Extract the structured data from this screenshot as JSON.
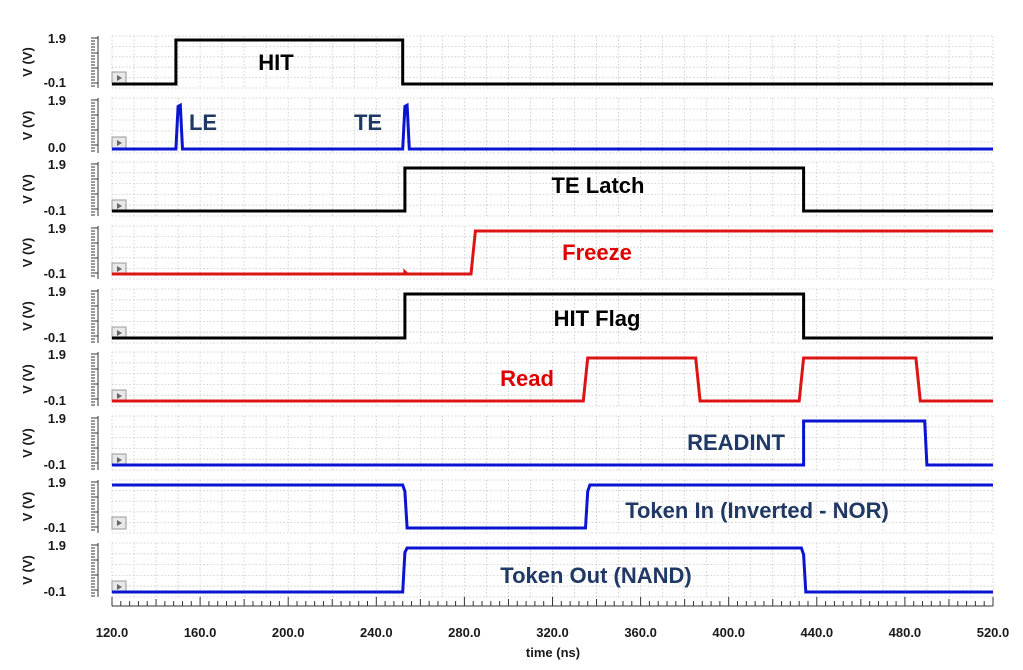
{
  "chart_data": {
    "type": "line",
    "xlabel": "time (ns)",
    "xlim": [
      120,
      520
    ],
    "x_ticks": [
      "120.0",
      "160.0",
      "200.0",
      "240.0",
      "280.0",
      "320.0",
      "360.0",
      "400.0",
      "440.0",
      "480.0",
      "520.0"
    ],
    "ylabel": "V (V)",
    "grid": true,
    "colors": {
      "black": "#000000",
      "blue": "#0a14d2",
      "red": "#dc1414",
      "navy": "#1f3864",
      "label_red": "#e00000"
    },
    "series": [
      {
        "name": "HIT",
        "color": "#000000",
        "label_color": "#000000",
        "y_top": "1.9",
        "y_bot": "-0.1",
        "ylim": [
          -0.1,
          1.9
        ],
        "points": [
          [
            120,
            -0.1
          ],
          [
            149,
            -0.1
          ],
          [
            149,
            1.9
          ],
          [
            252,
            1.9
          ],
          [
            252,
            -0.1
          ],
          [
            520,
            -0.1
          ]
        ]
      },
      {
        "name": "",
        "color": "#0a14d2",
        "label_color": "#1f3864",
        "y_top": "1.9",
        "y_bot": "0.0",
        "ylim": [
          0.0,
          1.9
        ],
        "labels": [
          "LE",
          "TE"
        ],
        "points": [
          [
            120,
            0
          ],
          [
            149,
            0
          ],
          [
            150,
            1.8
          ],
          [
            151,
            1.85
          ],
          [
            152,
            0
          ],
          [
            252,
            0
          ],
          [
            253,
            1.8
          ],
          [
            254,
            1.85
          ],
          [
            255,
            0
          ],
          [
            520,
            0
          ]
        ]
      },
      {
        "name": "TE Latch",
        "color": "#000000",
        "label_color": "#000000",
        "y_top": "1.9",
        "y_bot": "-0.1",
        "ylim": [
          -0.1,
          1.9
        ],
        "points": [
          [
            120,
            -0.1
          ],
          [
            253,
            -0.1
          ],
          [
            253,
            1.9
          ],
          [
            434,
            1.9
          ],
          [
            434,
            -0.1
          ],
          [
            520,
            -0.1
          ]
        ]
      },
      {
        "name": "Freeze",
        "color": "#dc1414",
        "label_color": "#e00000",
        "y_top": "1.9",
        "y_bot": "-0.1",
        "ylim": [
          -0.1,
          1.9
        ],
        "points": [
          [
            120,
            -0.1
          ],
          [
            253,
            -0.1
          ],
          [
            253,
            0.0
          ],
          [
            254,
            -0.1
          ],
          [
            283,
            -0.1
          ],
          [
            285,
            1.9
          ],
          [
            520,
            1.9
          ]
        ]
      },
      {
        "name": "HIT Flag",
        "color": "#000000",
        "label_color": "#000000",
        "y_top": "1.9",
        "y_bot": "-0.1",
        "ylim": [
          -0.1,
          1.9
        ],
        "points": [
          [
            120,
            -0.1
          ],
          [
            253,
            -0.1
          ],
          [
            253,
            1.9
          ],
          [
            434,
            1.9
          ],
          [
            434,
            -0.1
          ],
          [
            520,
            -0.1
          ]
        ]
      },
      {
        "name": "Read",
        "color": "#dc1414",
        "label_color": "#e00000",
        "y_top": "1.9",
        "y_bot": "-0.1",
        "ylim": [
          -0.1,
          1.9
        ],
        "points": [
          [
            120,
            -0.1
          ],
          [
            334,
            -0.1
          ],
          [
            336,
            1.9
          ],
          [
            385,
            1.9
          ],
          [
            387,
            -0.1
          ],
          [
            432,
            -0.1
          ],
          [
            434,
            1.9
          ],
          [
            485,
            1.9
          ],
          [
            487,
            -0.1
          ],
          [
            520,
            -0.1
          ]
        ]
      },
      {
        "name": "READINT",
        "color": "#0a14d2",
        "label_color": "#1f3864",
        "y_top": "1.9",
        "y_bot": "-0.1",
        "ylim": [
          -0.1,
          1.9
        ],
        "points": [
          [
            120,
            -0.1
          ],
          [
            434,
            -0.1
          ],
          [
            434,
            1.9
          ],
          [
            489,
            1.9
          ],
          [
            490,
            -0.1
          ],
          [
            520,
            -0.1
          ]
        ]
      },
      {
        "name": "Token In (Inverted - NOR)",
        "color": "#0a14d2",
        "label_color": "#1f3864",
        "y_top": "1.9",
        "y_bot": "-0.1",
        "ylim": [
          -0.1,
          1.9
        ],
        "points": [
          [
            120,
            1.9
          ],
          [
            252,
            1.9
          ],
          [
            253,
            1.6
          ],
          [
            254,
            -0.1
          ],
          [
            335,
            -0.1
          ],
          [
            336,
            1.6
          ],
          [
            337,
            1.9
          ],
          [
            520,
            1.9
          ]
        ]
      },
      {
        "name": "Token Out (NAND)",
        "color": "#0a14d2",
        "label_color": "#1f3864",
        "y_top": "1.9",
        "y_bot": "-0.1",
        "ylim": [
          -0.1,
          1.9
        ],
        "points": [
          [
            120,
            -0.1
          ],
          [
            252,
            -0.1
          ],
          [
            253,
            1.7
          ],
          [
            254,
            1.9
          ],
          [
            433,
            1.9
          ],
          [
            434,
            1.6
          ],
          [
            435,
            -0.1
          ],
          [
            520,
            -0.1
          ]
        ]
      }
    ]
  }
}
